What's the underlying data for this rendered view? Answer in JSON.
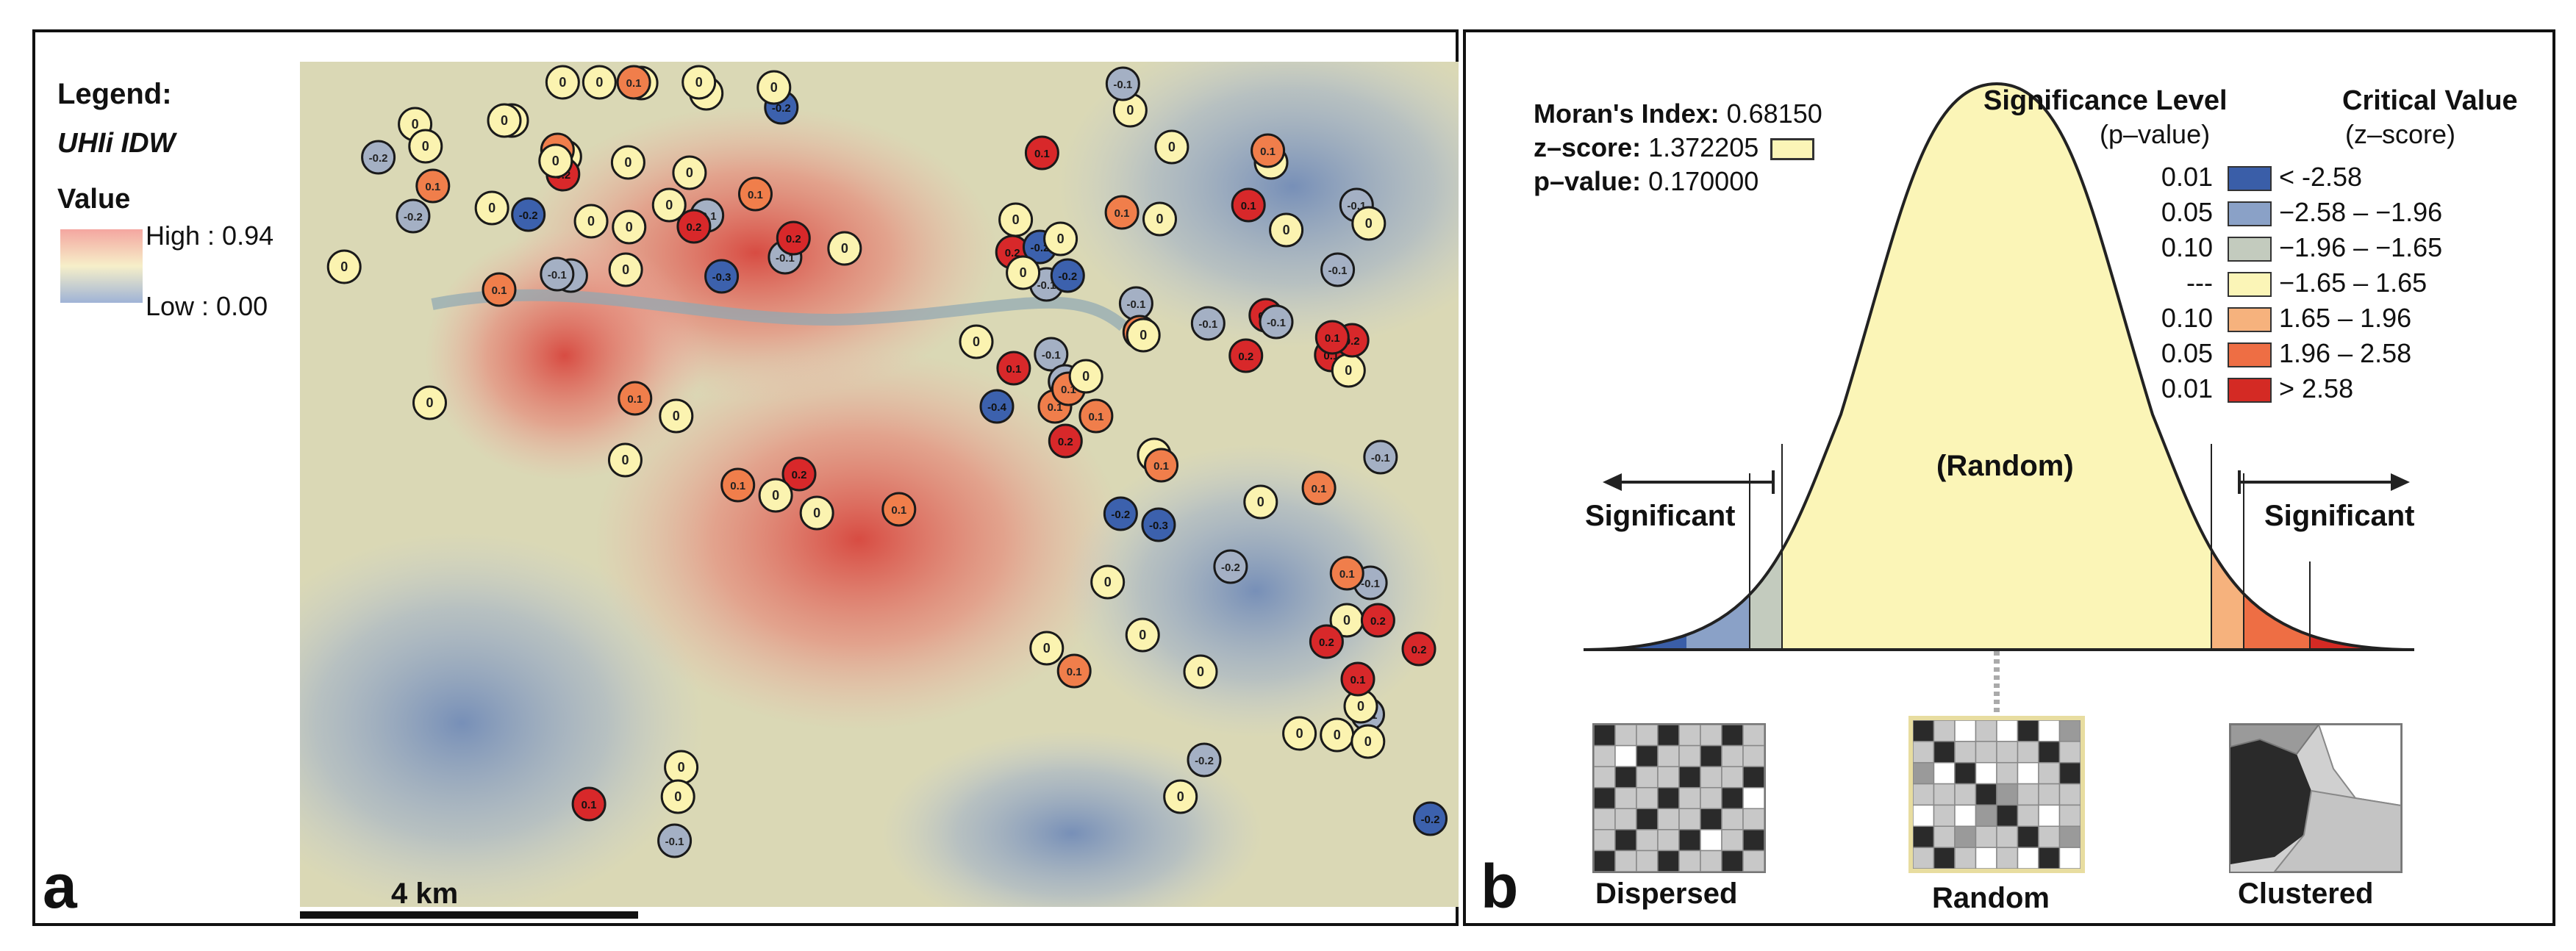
{
  "panel_a": {
    "label": "a",
    "legend_title": "Legend:",
    "layer_name": "UHIi IDW",
    "value_heading": "Value",
    "high_label": "High : 0.94",
    "low_label": "Low : 0.00",
    "scale_label": "4 km",
    "gradient_colors": [
      "#f4a6a0",
      "#f6efc9",
      "#9fb3d6"
    ],
    "markers": [
      {
        "v": "0",
        "c": "y"
      },
      {
        "v": "0",
        "c": "y"
      },
      {
        "v": "0",
        "c": "y"
      },
      {
        "v": "-0.2",
        "c": "b"
      },
      {
        "v": "0",
        "c": "y"
      },
      {
        "v": "-0.2",
        "c": "g"
      },
      {
        "v": "0.1",
        "c": "o"
      },
      {
        "v": "0",
        "c": "y"
      },
      {
        "v": "0",
        "c": "y"
      },
      {
        "v": "0.2",
        "c": "r"
      },
      {
        "v": "0",
        "c": "y"
      },
      {
        "v": "0",
        "c": "y"
      },
      {
        "v": "0",
        "c": "y"
      },
      {
        "v": "-0.1",
        "c": "g"
      },
      {
        "v": "0.1",
        "c": "o"
      },
      {
        "v": "0.1",
        "c": "r"
      },
      {
        "v": "0",
        "c": "y"
      },
      {
        "v": "0",
        "c": "y"
      },
      {
        "v": "0.1",
        "c": "o"
      },
      {
        "v": "-0.1",
        "c": "g"
      },
      {
        "v": "0",
        "c": "y"
      },
      {
        "v": "-0.2",
        "c": "g"
      },
      {
        "v": "0",
        "c": "y"
      },
      {
        "v": "-0.2",
        "c": "b"
      },
      {
        "v": "0",
        "c": "y"
      },
      {
        "v": "0",
        "c": "g"
      },
      {
        "v": "0.1",
        "c": "o"
      },
      {
        "v": "-0.1",
        "c": "g"
      },
      {
        "v": "0",
        "c": "y"
      },
      {
        "v": "0.2",
        "c": "r"
      },
      {
        "v": "0",
        "c": "y"
      },
      {
        "v": "-0.3",
        "c": "b"
      },
      {
        "v": "-0.1",
        "c": "g"
      },
      {
        "v": "0.2",
        "c": "r"
      },
      {
        "v": "0",
        "c": "y"
      },
      {
        "v": "0",
        "c": "y"
      },
      {
        "v": "0.2",
        "c": "r"
      },
      {
        "v": "-0.1",
        "c": "g"
      },
      {
        "v": "-0.2",
        "c": "b"
      },
      {
        "v": "0",
        "c": "y"
      },
      {
        "v": "0.1",
        "c": "o"
      },
      {
        "v": "0",
        "c": "y"
      },
      {
        "v": "0.1",
        "c": "r"
      },
      {
        "v": "0",
        "c": "y"
      },
      {
        "v": "-0.1",
        "c": "g"
      },
      {
        "v": "0",
        "c": "y"
      },
      {
        "v": "-0.2",
        "c": "b"
      },
      {
        "v": "0.1",
        "c": "r"
      },
      {
        "v": "-0.1",
        "c": "g"
      },
      {
        "v": "0",
        "c": "y"
      },
      {
        "v": "-0.1",
        "c": "g"
      },
      {
        "v": "0.1",
        "c": "o"
      },
      {
        "v": "0",
        "c": "y"
      },
      {
        "v": "-0.1",
        "c": "g"
      },
      {
        "v": "0.2",
        "c": "r"
      },
      {
        "v": "0.1",
        "c": "r"
      },
      {
        "v": "0",
        "c": "y"
      },
      {
        "v": "0.2",
        "c": "r"
      },
      {
        "v": "-0.1",
        "c": "g"
      },
      {
        "v": "0.1",
        "c": "r"
      },
      {
        "v": "0",
        "c": "y"
      },
      {
        "v": "-0.1",
        "c": "g"
      },
      {
        "v": "0.1",
        "c": "o"
      },
      {
        "v": "0.1",
        "c": "o"
      },
      {
        "v": "-0.4",
        "c": "b"
      },
      {
        "v": "0",
        "c": "y"
      },
      {
        "v": "0.1",
        "c": "o"
      },
      {
        "v": "0.2",
        "c": "r"
      },
      {
        "v": "0",
        "c": "y"
      },
      {
        "v": "0.1",
        "c": "o"
      },
      {
        "v": "0.1",
        "c": "r"
      },
      {
        "v": "0",
        "c": "y"
      },
      {
        "v": "0.1",
        "c": "o"
      },
      {
        "v": "0",
        "c": "y"
      },
      {
        "v": "0.2",
        "c": "r"
      },
      {
        "v": "-0.2",
        "c": "b"
      },
      {
        "v": "0",
        "c": "y"
      },
      {
        "v": "0.1",
        "c": "o"
      },
      {
        "v": "-0.1",
        "c": "g"
      },
      {
        "v": "-0.1",
        "c": "g"
      },
      {
        "v": "0",
        "c": "y"
      },
      {
        "v": "0.1",
        "c": "o"
      },
      {
        "v": "0",
        "c": "y"
      },
      {
        "v": "0",
        "c": "y"
      },
      {
        "v": "-0.3",
        "c": "b"
      },
      {
        "v": "0.1",
        "c": "o"
      },
      {
        "v": "0",
        "c": "y"
      },
      {
        "v": "-0.2",
        "c": "g"
      },
      {
        "v": "0.1",
        "c": "o"
      },
      {
        "v": "0",
        "c": "y"
      },
      {
        "v": "0.2",
        "c": "r"
      },
      {
        "v": "0.2",
        "c": "r"
      },
      {
        "v": "0.2",
        "c": "r"
      },
      {
        "v": "-0.1",
        "c": "g"
      },
      {
        "v": "0",
        "c": "y"
      },
      {
        "v": "0",
        "c": "y"
      },
      {
        "v": "0",
        "c": "y"
      },
      {
        "v": "0",
        "c": "y"
      },
      {
        "v": "0",
        "c": "y"
      },
      {
        "v": "0.1",
        "c": "o"
      },
      {
        "v": "0",
        "c": "y"
      },
      {
        "v": "0",
        "c": "y"
      },
      {
        "v": "0.1",
        "c": "r"
      },
      {
        "v": "-0.2",
        "c": "g"
      },
      {
        "v": "0",
        "c": "y"
      },
      {
        "v": "0",
        "c": "y"
      },
      {
        "v": "0",
        "c": "y"
      },
      {
        "v": "0.1",
        "c": "r"
      },
      {
        "v": "-0.1",
        "c": "g"
      },
      {
        "v": "-0.2",
        "c": "b"
      },
      {
        "v": "0",
        "c": "y"
      },
      {
        "v": "0.1",
        "c": "o"
      },
      {
        "v": "0",
        "c": "y"
      },
      {
        "v": "0",
        "c": "y"
      },
      {
        "v": "-0.1",
        "c": "g"
      },
      {
        "v": "0",
        "c": "y"
      },
      {
        "v": "0",
        "c": "y"
      },
      {
        "v": "0",
        "c": "y"
      },
      {
        "v": "0.1",
        "c": "o"
      },
      {
        "v": "0",
        "c": "y"
      }
    ]
  },
  "panel_b": {
    "label": "b",
    "morans_label": "Moran's Index:",
    "morans_value": "0.68150",
    "z_label": "z–score:",
    "z_value": "1.372205",
    "p_label": "p–value:",
    "p_value": "0.170000",
    "sig_title": "Significance Level",
    "sig_sub": "(p–value)",
    "crit_title": "Critical Value",
    "crit_sub": "(z–score)",
    "legend_rows": [
      {
        "p": "0.01",
        "z": "< -2.58",
        "color": "#3a5ea8"
      },
      {
        "p": "0.05",
        "z": "−2.58 – −1.96",
        "color": "#8aa1c7"
      },
      {
        "p": "0.10",
        "z": "−1.96 – −1.65",
        "color": "#c3cbbe"
      },
      {
        "p": "---",
        "z": "−1.65 – 1.65",
        "color": "#fbf5b7"
      },
      {
        "p": "0.10",
        "z": "1.65 – 1.96",
        "color": "#f6b27d"
      },
      {
        "p": "0.05",
        "z": "1.96 – 2.58",
        "color": "#ee6e44"
      },
      {
        "p": "0.01",
        "z": "> 2.58",
        "color": "#d42a24"
      }
    ],
    "random_center": "(Random)",
    "significant_left": "Significant",
    "significant_right": "Significant",
    "patterns": [
      "Dispersed",
      "Random",
      "Clustered"
    ]
  }
}
